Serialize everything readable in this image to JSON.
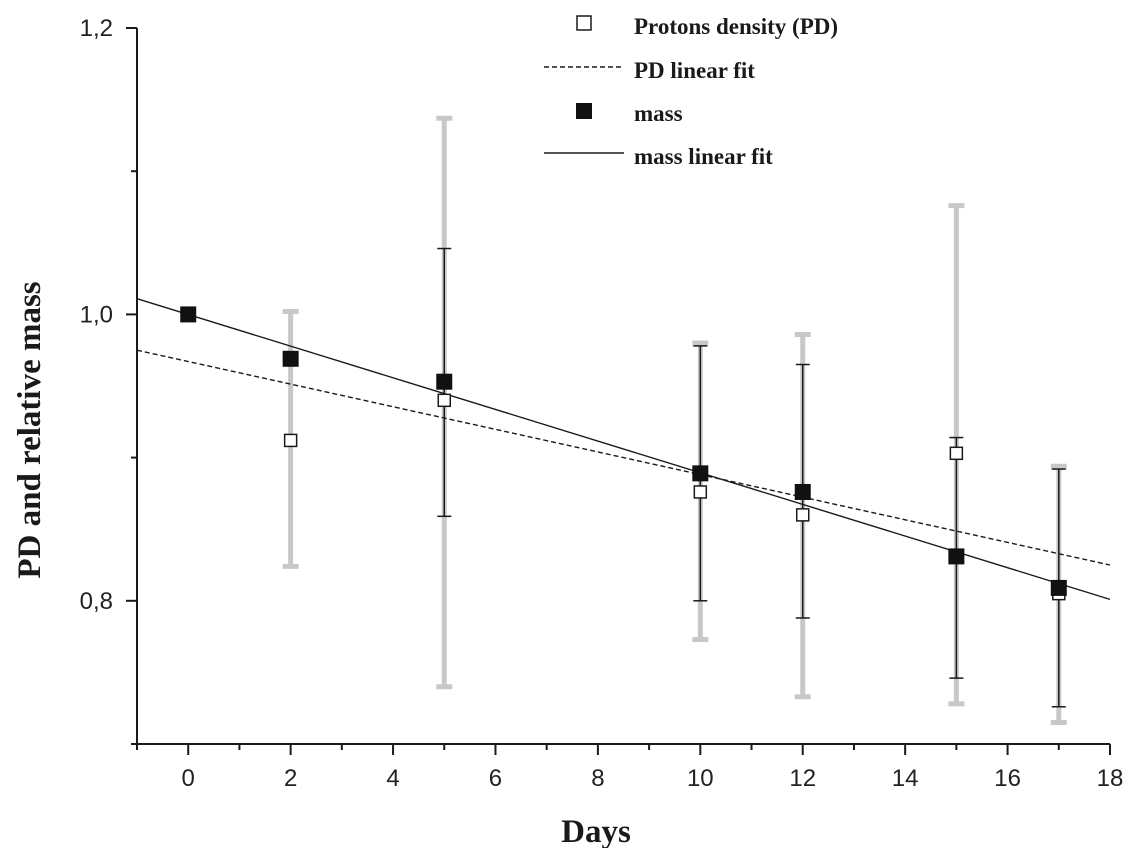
{
  "chart_data": {
    "type": "scatter",
    "xlabel": "Days",
    "ylabel": "PD and relative mass",
    "xlim": [
      -1,
      18
    ],
    "ylim": [
      0.7,
      1.2
    ],
    "x_ticks": [
      0,
      2,
      4,
      6,
      8,
      10,
      12,
      14,
      16,
      18
    ],
    "x_tick_labels": [
      "0",
      "2",
      "4",
      "6",
      "8",
      "10",
      "12",
      "14",
      "16",
      "18"
    ],
    "y_ticks": [
      0.8,
      1.0,
      1.2
    ],
    "y_tick_labels": [
      "0,8",
      "1,0",
      "1,2"
    ],
    "grid": false,
    "legend_position": "top-right",
    "series": [
      {
        "name": "Protons density (PD)",
        "marker": "open-square",
        "x": [
          2,
          5,
          10,
          12,
          15,
          17
        ],
        "y": [
          0.912,
          0.94,
          0.876,
          0.86,
          0.903,
          0.805
        ],
        "error_low": [
          0.824,
          0.74,
          0.773,
          0.733,
          0.728,
          0.715
        ],
        "error_high": [
          1.002,
          1.137,
          0.98,
          0.986,
          1.076,
          0.894
        ],
        "error_color": "#c8c8c8"
      },
      {
        "name": "mass",
        "marker": "filled-square",
        "x": [
          0,
          2,
          5,
          10,
          12,
          15,
          17
        ],
        "y": [
          1.0,
          0.969,
          0.953,
          0.889,
          0.876,
          0.831,
          0.809
        ],
        "error_low": [
          null,
          null,
          0.859,
          0.8,
          0.788,
          0.746,
          0.726
        ],
        "error_high": [
          null,
          null,
          1.046,
          0.978,
          0.965,
          0.914,
          0.892
        ],
        "error_color": "#1a1a1a"
      }
    ],
    "fits": [
      {
        "name": "PD linear fit",
        "style": "dashed",
        "x": [
          -1,
          18
        ],
        "y": [
          0.975,
          0.825
        ]
      },
      {
        "name": "mass linear fit",
        "style": "solid",
        "x": [
          -1,
          18
        ],
        "y": [
          1.011,
          0.801
        ]
      }
    ],
    "legend_entries": [
      {
        "label": "Protons density (PD)",
        "kind": "open-square"
      },
      {
        "label": "PD linear fit",
        "kind": "dashed-line"
      },
      {
        "label": "mass",
        "kind": "filled-square"
      },
      {
        "label": "mass linear fit",
        "kind": "solid-line"
      }
    ]
  }
}
